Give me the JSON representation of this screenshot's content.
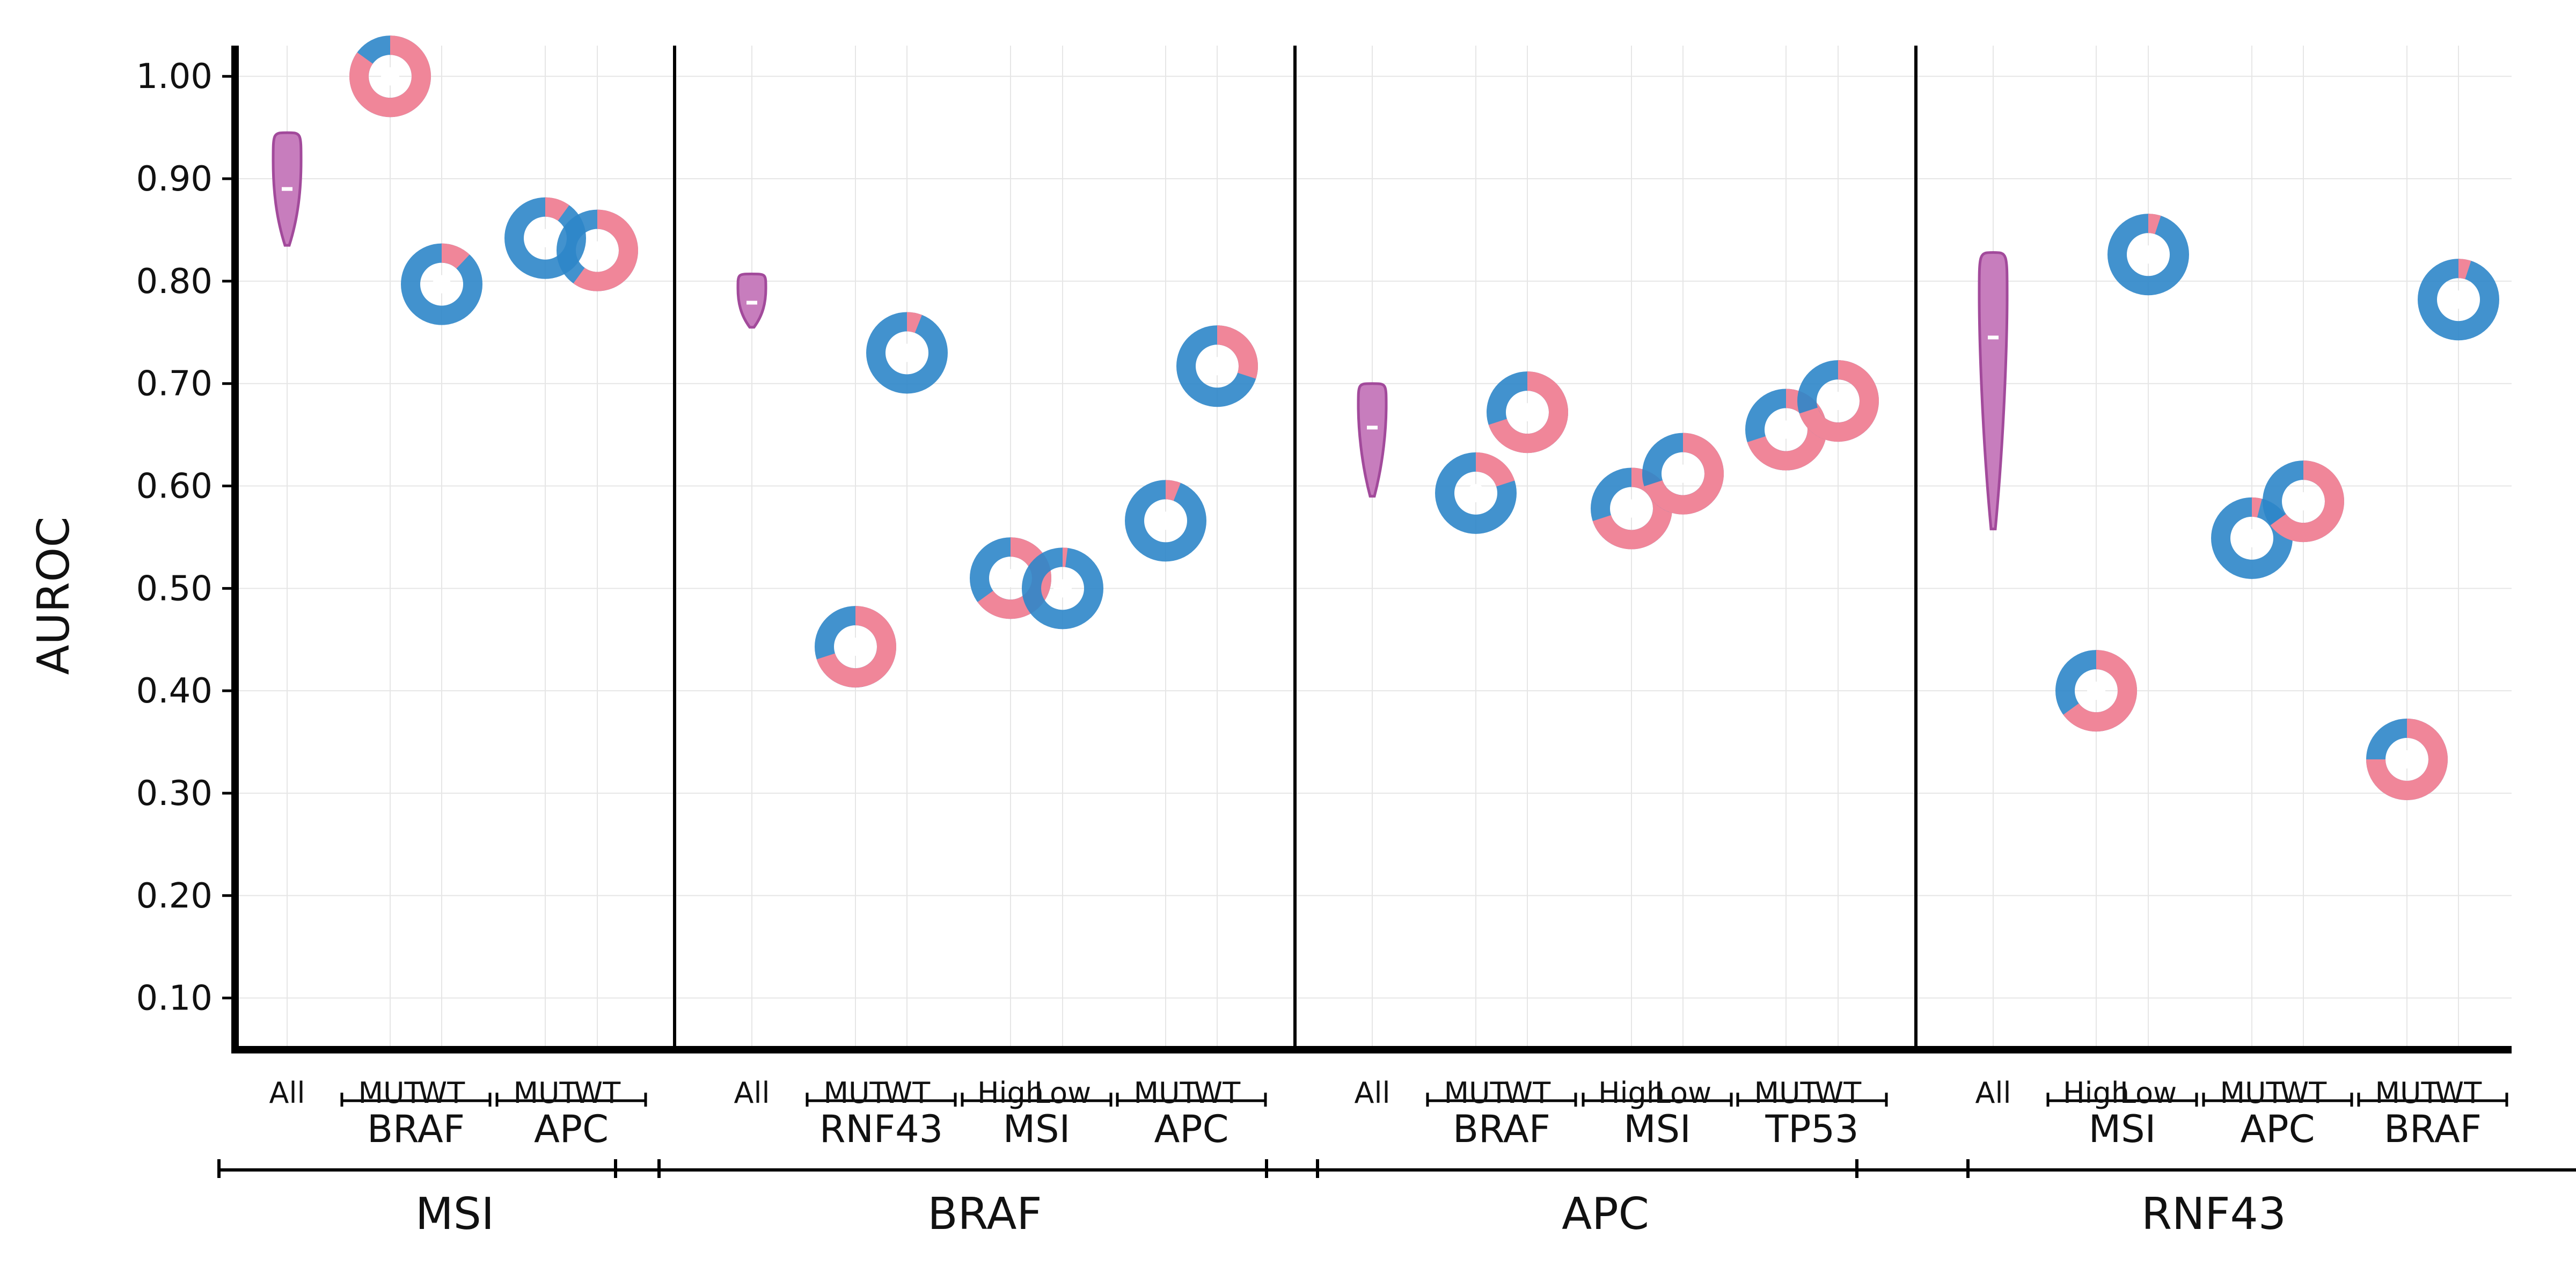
{
  "colors": {
    "mut_pink": "#f08699",
    "wt_blue": "#2e86c9",
    "violin_fill": "#c77dbd",
    "violin_edge": "#a24a9b",
    "grid": "#e6e6e6",
    "axis": "#000000"
  },
  "chart_data": {
    "type": "scatter",
    "ylabel": "AUROC",
    "ylim": [
      0.05,
      1.03
    ],
    "yticks": [
      "0.10",
      "0.20",
      "0.30",
      "0.40",
      "0.50",
      "0.60",
      "0.70",
      "0.80",
      "0.90",
      "1.00"
    ],
    "ytick_values": [
      0.1,
      0.2,
      0.3,
      0.4,
      0.5,
      0.6,
      0.7,
      0.8,
      0.9,
      1.0
    ],
    "grid": true,
    "panels": [
      {
        "label": "MSI",
        "violin": {
          "label": "All",
          "min": 0.835,
          "max": 0.945,
          "median": 0.89
        },
        "groups": [
          {
            "label": "BRAF",
            "points": [
              {
                "label": "MUT",
                "value": 1.0,
                "mut_fraction": 0.85
              },
              {
                "label": "WT",
                "value": 0.797,
                "mut_fraction": 0.12
              }
            ]
          },
          {
            "label": "APC",
            "points": [
              {
                "label": "MUT",
                "value": 0.842,
                "mut_fraction": 0.1
              },
              {
                "label": "WT",
                "value": 0.83,
                "mut_fraction": 0.6
              }
            ]
          }
        ]
      },
      {
        "label": "BRAF",
        "violin": {
          "label": "All",
          "min": 0.755,
          "max": 0.807,
          "median": 0.779
        },
        "groups": [
          {
            "label": "RNF43",
            "points": [
              {
                "label": "MUT",
                "value": 0.443,
                "mut_fraction": 0.7
              },
              {
                "label": "WT",
                "value": 0.73,
                "mut_fraction": 0.06
              }
            ]
          },
          {
            "label": "MSI",
            "points": [
              {
                "label": "High",
                "value": 0.51,
                "mut_fraction": 0.65
              },
              {
                "label": "Low",
                "value": 0.5,
                "mut_fraction": 0.02
              }
            ]
          },
          {
            "label": "APC",
            "points": [
              {
                "label": "MUT",
                "value": 0.566,
                "mut_fraction": 0.06
              },
              {
                "label": "WT",
                "value": 0.717,
                "mut_fraction": 0.3
              }
            ]
          }
        ]
      },
      {
        "label": "APC",
        "violin": {
          "label": "All",
          "min": 0.59,
          "max": 0.7,
          "median": 0.657
        },
        "groups": [
          {
            "label": "BRAF",
            "points": [
              {
                "label": "MUT",
                "value": 0.593,
                "mut_fraction": 0.2
              },
              {
                "label": "WT",
                "value": 0.672,
                "mut_fraction": 0.7
              }
            ]
          },
          {
            "label": "MSI",
            "points": [
              {
                "label": "High",
                "value": 0.578,
                "mut_fraction": 0.7
              },
              {
                "label": "Low",
                "value": 0.612,
                "mut_fraction": 0.7
              }
            ]
          },
          {
            "label": "TP53",
            "points": [
              {
                "label": "MUT",
                "value": 0.655,
                "mut_fraction": 0.7
              },
              {
                "label": "WT",
                "value": 0.683,
                "mut_fraction": 0.7
              }
            ]
          }
        ]
      },
      {
        "label": "RNF43",
        "violin": {
          "label": "All",
          "min": 0.558,
          "max": 0.828,
          "median": 0.745
        },
        "groups": [
          {
            "label": "MSI",
            "points": [
              {
                "label": "High",
                "value": 0.4,
                "mut_fraction": 0.65
              },
              {
                "label": "Low",
                "value": 0.826,
                "mut_fraction": 0.05
              }
            ]
          },
          {
            "label": "APC",
            "points": [
              {
                "label": "MUT",
                "value": 0.549,
                "mut_fraction": 0.04
              },
              {
                "label": "WT",
                "value": 0.585,
                "mut_fraction": 0.65
              }
            ]
          },
          {
            "label": "BRAF",
            "points": [
              {
                "label": "MUT",
                "value": 0.333,
                "mut_fraction": 0.75
              },
              {
                "label": "WT",
                "value": 0.782,
                "mut_fraction": 0.05
              }
            ]
          }
        ]
      }
    ]
  }
}
